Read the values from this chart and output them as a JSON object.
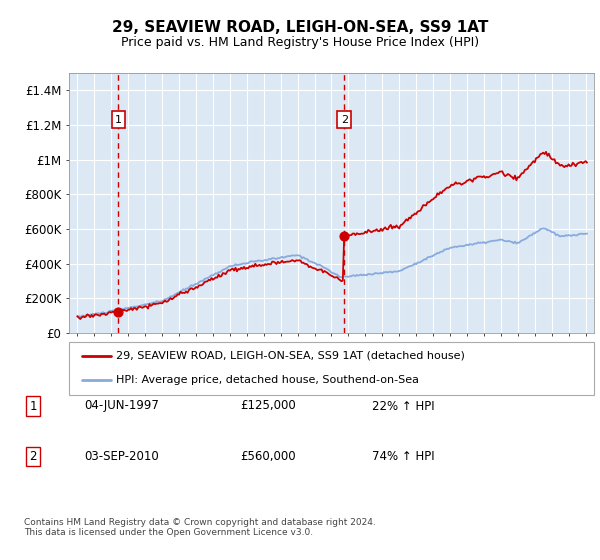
{
  "title": "29, SEAVIEW ROAD, LEIGH-ON-SEA, SS9 1AT",
  "subtitle": "Price paid vs. HM Land Registry's House Price Index (HPI)",
  "background_color": "#ffffff",
  "plot_bg_color": "#dce9f5",
  "red_line_color": "#cc0000",
  "blue_line_color": "#88aadd",
  "grid_color": "#ffffff",
  "annotation_box_color": "#cc0000",
  "dashed_line_color": "#cc0000",
  "ylim": [
    0,
    1500000
  ],
  "yticks": [
    0,
    200000,
    400000,
    600000,
    800000,
    1000000,
    1200000,
    1400000
  ],
  "ytick_labels": [
    "£0",
    "£200K",
    "£400K",
    "£600K",
    "£800K",
    "£1M",
    "£1.2M",
    "£1.4M"
  ],
  "sale1_year": 1997.42,
  "sale1_price": 125000,
  "sale2_year": 2010.75,
  "sale2_price": 560000,
  "legend_label1": "29, SEAVIEW ROAD, LEIGH-ON-SEA, SS9 1AT (detached house)",
  "legend_label2": "HPI: Average price, detached house, Southend-on-Sea",
  "xmin": 1994.5,
  "xmax": 2025.5,
  "footer": "Contains HM Land Registry data © Crown copyright and database right 2024.\nThis data is licensed under the Open Government Licence v3.0."
}
